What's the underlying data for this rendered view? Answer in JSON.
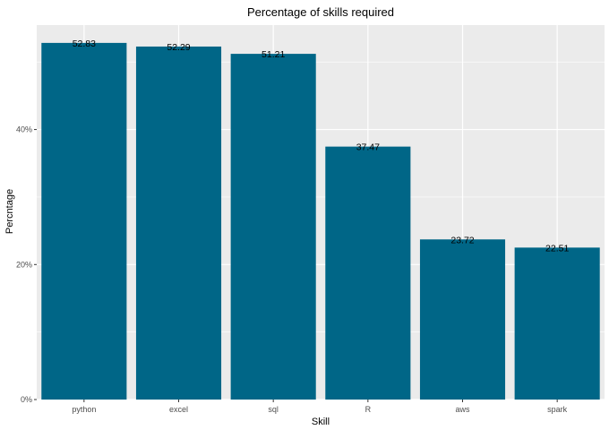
{
  "chart_data": {
    "type": "bar",
    "title": "Percentage of skills required",
    "xlabel": "Skill",
    "ylabel": "Percntage",
    "categories": [
      "python",
      "excel",
      "sql",
      "R",
      "aws",
      "spark"
    ],
    "values": [
      52.83,
      52.29,
      51.21,
      37.47,
      23.72,
      22.51
    ],
    "value_labels": [
      "52.83",
      "52.29",
      "51.21",
      "37.47",
      "23.72",
      "22.51"
    ],
    "y_ticks": [
      {
        "value": 0,
        "label": "0%"
      },
      {
        "value": 20,
        "label": "20%"
      },
      {
        "value": 40,
        "label": "40%"
      }
    ],
    "ylim": [
      0,
      55.47
    ],
    "grid": true,
    "legend": "none",
    "bar_color": "#006687",
    "panel_background": "#ebebeb",
    "gridline_color": "#ffffff"
  }
}
